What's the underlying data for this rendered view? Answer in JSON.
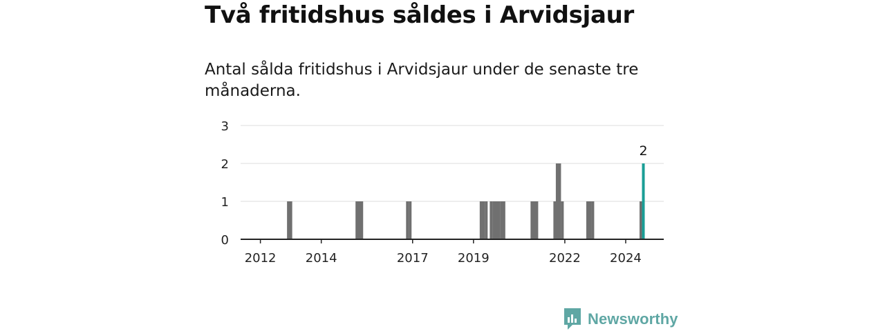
{
  "header": {
    "title": "Två fritidshus såldes i Arvidsjaur",
    "subtitle": "Antal sålda fritidshus i Arvidsjaur under de senaste tre månaderna."
  },
  "logo": {
    "text": "Newsworthy",
    "icon": "newsworthy-logo-icon",
    "color": "#5fa7a4"
  },
  "colors": {
    "bar": "#707070",
    "highlight": "#1a9e96",
    "grid": "#dcdcdc",
    "axis": "#222222"
  },
  "chart_data": {
    "type": "bar",
    "title": "Två fritidshus såldes i Arvidsjaur",
    "xlabel": "",
    "ylabel": "",
    "ylim": [
      0,
      3
    ],
    "yticks": [
      0,
      1,
      2,
      3
    ],
    "xticks": [
      {
        "label": "2012",
        "t": 2012.0
      },
      {
        "label": "2014",
        "t": 2014.0
      },
      {
        "label": "2017",
        "t": 2017.0
      },
      {
        "label": "2019",
        "t": 2019.0
      },
      {
        "label": "2022",
        "t": 2022.0
      },
      {
        "label": "2024",
        "t": 2024.0
      }
    ],
    "x_range": [
      2011.35,
      2025.25
    ],
    "bars": [
      {
        "t": 2012.92,
        "value": 1
      },
      {
        "t": 2013.0,
        "value": 1
      },
      {
        "t": 2015.17,
        "value": 1
      },
      {
        "t": 2015.25,
        "value": 1
      },
      {
        "t": 2015.33,
        "value": 1
      },
      {
        "t": 2016.83,
        "value": 1
      },
      {
        "t": 2016.92,
        "value": 1
      },
      {
        "t": 2019.25,
        "value": 1
      },
      {
        "t": 2019.33,
        "value": 1
      },
      {
        "t": 2019.42,
        "value": 1
      },
      {
        "t": 2019.58,
        "value": 1
      },
      {
        "t": 2019.67,
        "value": 1
      },
      {
        "t": 2019.75,
        "value": 1
      },
      {
        "t": 2019.83,
        "value": 1
      },
      {
        "t": 2019.92,
        "value": 1
      },
      {
        "t": 2020.0,
        "value": 1
      },
      {
        "t": 2020.92,
        "value": 1
      },
      {
        "t": 2021.0,
        "value": 1
      },
      {
        "t": 2021.08,
        "value": 1
      },
      {
        "t": 2021.67,
        "value": 1
      },
      {
        "t": 2021.75,
        "value": 2
      },
      {
        "t": 2021.83,
        "value": 2
      },
      {
        "t": 2021.92,
        "value": 1
      },
      {
        "t": 2022.75,
        "value": 1
      },
      {
        "t": 2022.83,
        "value": 1
      },
      {
        "t": 2022.92,
        "value": 1
      },
      {
        "t": 2024.5,
        "value": 1
      },
      {
        "t": 2024.58,
        "value": 2,
        "highlight": true,
        "label": "2"
      }
    ]
  }
}
